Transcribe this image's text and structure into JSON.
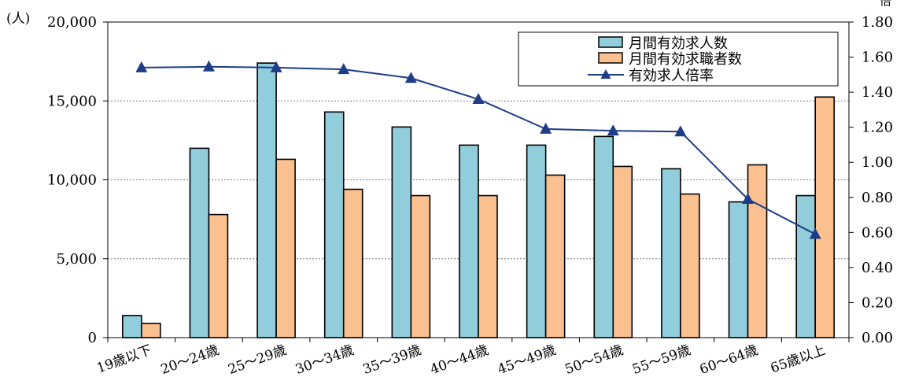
{
  "chart_data": {
    "type": "bar",
    "categories": [
      "19歳以下",
      "20～24歳",
      "25～29歳",
      "30～34歳",
      "35～39歳",
      "40～44歳",
      "45～49歳",
      "50～54歳",
      "55～59歳",
      "60～64歳",
      "65歳以上"
    ],
    "y_unit": "(人)",
    "y_ticks": [
      "0",
      "5,000",
      "10,000",
      "15,000",
      "20,000"
    ],
    "y2_ticks": [
      "0.00",
      "0.20",
      "0.40",
      "0.60",
      "0.80",
      "1.00",
      "1.20",
      "1.40",
      "1.60",
      "1.80"
    ],
    "y2_unit": "倍",
    "ylim": [
      0,
      20000
    ],
    "y2lim": [
      0,
      1.8
    ],
    "grid": "horizontal dotted",
    "legend_position": "top-right",
    "series": [
      {
        "name": "月間有効求人数",
        "kind": "bar",
        "color": "#92CDDC",
        "values": [
          1400,
          12000,
          17400,
          14300,
          13350,
          12200,
          12200,
          12750,
          10700,
          8600,
          9000
        ]
      },
      {
        "name": "月間有効求職者数",
        "kind": "bar",
        "color": "#FAC090",
        "values": [
          900,
          7800,
          11300,
          9400,
          9000,
          9000,
          10300,
          10850,
          9100,
          10950,
          15250
        ]
      },
      {
        "name": "有効求人倍率",
        "kind": "line",
        "axis": "right",
        "color": "#1F3C88",
        "values": [
          1.54,
          1.545,
          1.54,
          1.53,
          1.48,
          1.36,
          1.19,
          1.18,
          1.175,
          0.79,
          0.59
        ]
      }
    ]
  }
}
